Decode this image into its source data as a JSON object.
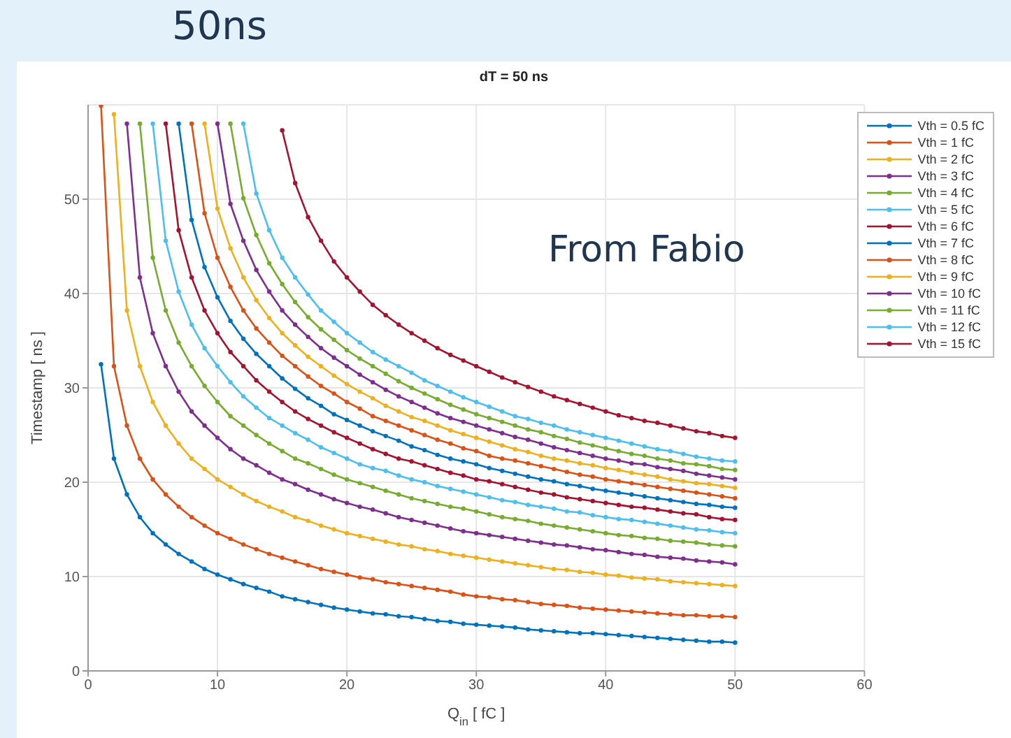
{
  "chart_data": {
    "type": "line",
    "title": "50ns",
    "subtitle": "dT = 50 ns",
    "xlabel": "Q$_{in}$ [ fC ]",
    "ylabel": "Timestamp [ ns ]",
    "annotations": [
      "From Fabio"
    ],
    "xlim": [
      0,
      60
    ],
    "xticks": [
      0,
      10,
      20,
      30,
      40,
      50,
      60
    ],
    "ylim": [
      0,
      60
    ],
    "yticks": [
      0,
      10,
      20,
      30,
      40,
      50
    ],
    "grid": true,
    "legend": "top right",
    "marker": "circle",
    "line_style": "solid",
    "series": [
      {
        "name": "Vth = 0.5 fC",
        "color": "#0072bd",
        "x": [
          1,
          2,
          3,
          4,
          5,
          6,
          7,
          8,
          9,
          10,
          11,
          12,
          13,
          14,
          15,
          16,
          17,
          18,
          19,
          20,
          21,
          22,
          23,
          24,
          25,
          26,
          27,
          28,
          29,
          30,
          31,
          32,
          33,
          34,
          35,
          36,
          37,
          38,
          39,
          40,
          41,
          42,
          43,
          44,
          45,
          46,
          47,
          48,
          49,
          50
        ],
        "values": [
          32.5,
          22.5,
          18.7,
          16.3,
          14.6,
          13.4,
          12.4,
          11.6,
          10.8,
          10.2,
          9.7,
          9.2,
          8.8,
          8.4,
          7.9,
          7.6,
          7.3,
          7.0,
          6.7,
          6.5,
          6.3,
          6.1,
          6.0,
          5.8,
          5.7,
          5.5,
          5.3,
          5.2,
          5.0,
          4.9,
          4.8,
          4.7,
          4.6,
          4.4,
          4.3,
          4.2,
          4.1,
          4.0,
          4.0,
          3.9,
          3.8,
          3.7,
          3.6,
          3.5,
          3.4,
          3.3,
          3.2,
          3.1,
          3.1,
          3.0
        ]
      },
      {
        "name": "Vth = 1 fC",
        "color": "#d95319",
        "x": [
          1,
          2,
          3,
          4,
          5,
          6,
          7,
          8,
          9,
          10,
          11,
          12,
          13,
          14,
          15,
          16,
          17,
          18,
          19,
          20,
          21,
          22,
          23,
          24,
          25,
          26,
          27,
          28,
          29,
          30,
          31,
          32,
          33,
          34,
          35,
          36,
          37,
          38,
          39,
          40,
          41,
          42,
          43,
          44,
          45,
          46,
          47,
          48,
          49,
          50
        ],
        "values": [
          59.9,
          32.3,
          26.0,
          22.5,
          20.3,
          18.7,
          17.4,
          16.3,
          15.4,
          14.6,
          14.0,
          13.4,
          12.9,
          12.4,
          12.0,
          11.6,
          11.2,
          10.8,
          10.5,
          10.2,
          9.9,
          9.7,
          9.4,
          9.2,
          9.0,
          8.8,
          8.6,
          8.4,
          8.1,
          7.9,
          7.8,
          7.6,
          7.5,
          7.3,
          7.1,
          7.0,
          6.9,
          6.7,
          6.6,
          6.5,
          6.4,
          6.3,
          6.2,
          6.1,
          6.0,
          5.9,
          5.9,
          5.8,
          5.8,
          5.7
        ]
      },
      {
        "name": "Vth = 2 fC",
        "color": "#edb120",
        "x": [
          2,
          3,
          4,
          5,
          6,
          7,
          8,
          9,
          10,
          11,
          12,
          13,
          14,
          15,
          16,
          17,
          18,
          19,
          20,
          21,
          22,
          23,
          24,
          25,
          26,
          27,
          28,
          29,
          30,
          31,
          32,
          33,
          34,
          35,
          36,
          37,
          38,
          39,
          40,
          41,
          42,
          43,
          44,
          45,
          46,
          47,
          48,
          49,
          50
        ],
        "values": [
          59.0,
          38.2,
          32.3,
          28.5,
          26.0,
          24.1,
          22.5,
          21.4,
          20.3,
          19.5,
          18.7,
          18.0,
          17.4,
          16.9,
          16.3,
          15.9,
          15.4,
          15.0,
          14.6,
          14.3,
          14.0,
          13.7,
          13.4,
          13.2,
          12.9,
          12.7,
          12.4,
          12.2,
          12.0,
          11.8,
          11.6,
          11.4,
          11.2,
          11.0,
          10.8,
          10.7,
          10.5,
          10.4,
          10.2,
          10.1,
          9.9,
          9.8,
          9.7,
          9.5,
          9.4,
          9.3,
          9.2,
          9.1,
          9.0
        ]
      },
      {
        "name": "Vth = 3 fC",
        "color": "#7e2f8e",
        "x": [
          3,
          4,
          5,
          6,
          7,
          8,
          9,
          10,
          11,
          12,
          13,
          14,
          15,
          16,
          17,
          18,
          19,
          20,
          21,
          22,
          23,
          24,
          25,
          26,
          27,
          28,
          29,
          30,
          31,
          32,
          33,
          34,
          35,
          36,
          37,
          38,
          39,
          40,
          41,
          42,
          43,
          44,
          45,
          46,
          47,
          48,
          49,
          50
        ],
        "values": [
          58.0,
          41.7,
          35.8,
          32.3,
          29.6,
          27.5,
          26.0,
          24.7,
          23.5,
          22.5,
          21.8,
          21.0,
          20.3,
          19.8,
          19.2,
          18.7,
          18.2,
          17.8,
          17.4,
          17.1,
          16.7,
          16.3,
          16.0,
          15.7,
          15.4,
          15.1,
          14.8,
          14.6,
          14.4,
          14.2,
          14.0,
          13.8,
          13.6,
          13.4,
          13.3,
          13.1,
          12.9,
          12.8,
          12.6,
          12.4,
          12.3,
          12.1,
          12.0,
          11.9,
          11.7,
          11.6,
          11.5,
          11.3
        ]
      },
      {
        "name": "Vth = 4 fC",
        "color": "#77ac30",
        "x": [
          4,
          5,
          6,
          7,
          8,
          9,
          10,
          11,
          12,
          13,
          14,
          15,
          16,
          17,
          18,
          19,
          20,
          21,
          22,
          23,
          24,
          25,
          26,
          27,
          28,
          29,
          30,
          31,
          32,
          33,
          34,
          35,
          36,
          37,
          38,
          39,
          40,
          41,
          42,
          43,
          44,
          45,
          46,
          47,
          48,
          49,
          50
        ],
        "values": [
          58.0,
          43.8,
          38.2,
          34.8,
          32.3,
          30.2,
          28.5,
          27.0,
          26.0,
          25.0,
          24.1,
          23.3,
          22.5,
          22.0,
          21.4,
          20.8,
          20.3,
          19.9,
          19.5,
          19.1,
          18.7,
          18.3,
          18.0,
          17.7,
          17.4,
          17.2,
          16.9,
          16.6,
          16.3,
          16.1,
          15.9,
          15.6,
          15.4,
          15.2,
          15.0,
          14.8,
          14.6,
          14.4,
          14.3,
          14.1,
          14.0,
          13.8,
          13.7,
          13.6,
          13.4,
          13.3,
          13.2
        ]
      },
      {
        "name": "Vth = 5 fC",
        "color": "#4dbeee",
        "x": [
          5,
          6,
          7,
          8,
          9,
          10,
          11,
          12,
          13,
          14,
          15,
          16,
          17,
          18,
          19,
          20,
          21,
          22,
          23,
          24,
          25,
          26,
          27,
          28,
          29,
          30,
          31,
          32,
          33,
          34,
          35,
          36,
          37,
          38,
          39,
          40,
          41,
          42,
          43,
          44,
          45,
          46,
          47,
          48,
          49,
          50
        ],
        "values": [
          58.0,
          45.6,
          40.2,
          36.7,
          34.2,
          32.3,
          30.6,
          29.1,
          27.9,
          26.8,
          26.0,
          25.2,
          24.5,
          23.7,
          23.1,
          22.5,
          21.9,
          21.5,
          21.2,
          20.7,
          20.3,
          20.0,
          19.6,
          19.3,
          19.0,
          18.7,
          18.4,
          18.1,
          17.9,
          17.6,
          17.4,
          17.2,
          16.9,
          16.8,
          16.5,
          16.3,
          16.1,
          16.0,
          15.8,
          15.6,
          15.4,
          15.2,
          15.0,
          14.9,
          14.7,
          14.6
        ]
      },
      {
        "name": "Vth = 6 fC",
        "color": "#a2142f",
        "x": [
          6,
          7,
          8,
          9,
          10,
          11,
          12,
          13,
          14,
          15,
          16,
          17,
          18,
          19,
          20,
          21,
          22,
          23,
          24,
          25,
          26,
          27,
          28,
          29,
          30,
          31,
          32,
          33,
          34,
          35,
          36,
          37,
          38,
          39,
          40,
          41,
          42,
          43,
          44,
          45,
          46,
          47,
          48,
          49,
          50
        ],
        "values": [
          58.0,
          46.7,
          41.7,
          38.2,
          35.8,
          33.8,
          32.3,
          30.8,
          29.6,
          28.5,
          27.5,
          26.7,
          26.0,
          25.3,
          24.7,
          24.1,
          23.5,
          23.0,
          22.5,
          22.2,
          21.8,
          21.4,
          21.0,
          20.7,
          20.3,
          20.1,
          19.8,
          19.5,
          19.2,
          18.9,
          18.7,
          18.4,
          18.2,
          18.0,
          17.8,
          17.6,
          17.4,
          17.3,
          17.1,
          16.9,
          16.7,
          16.6,
          16.3,
          16.1,
          16.0
        ]
      },
      {
        "name": "Vth = 7 fC",
        "color": "#0072bd",
        "x": [
          7,
          8,
          9,
          10,
          11,
          12,
          13,
          14,
          15,
          16,
          17,
          18,
          19,
          20,
          21,
          22,
          23,
          24,
          25,
          26,
          27,
          28,
          29,
          30,
          31,
          32,
          33,
          34,
          35,
          36,
          37,
          38,
          39,
          40,
          41,
          42,
          43,
          44,
          45,
          46,
          47,
          48,
          49,
          50
        ],
        "values": [
          58.0,
          47.8,
          42.8,
          39.6,
          37.1,
          35.2,
          33.6,
          32.3,
          31.0,
          29.9,
          28.9,
          28.1,
          27.2,
          26.6,
          26.0,
          25.4,
          24.9,
          24.4,
          23.8,
          23.4,
          22.9,
          22.5,
          22.2,
          21.9,
          21.5,
          21.2,
          20.9,
          20.6,
          20.3,
          20.1,
          19.8,
          19.6,
          19.3,
          19.1,
          18.9,
          18.7,
          18.5,
          18.3,
          18.1,
          17.9,
          17.7,
          17.6,
          17.4,
          17.3
        ]
      },
      {
        "name": "Vth = 8 fC",
        "color": "#d95319",
        "x": [
          8,
          9,
          10,
          11,
          12,
          13,
          14,
          15,
          16,
          17,
          18,
          19,
          20,
          21,
          22,
          23,
          24,
          25,
          26,
          27,
          28,
          29,
          30,
          31,
          32,
          33,
          34,
          35,
          36,
          37,
          38,
          39,
          40,
          41,
          42,
          43,
          44,
          45,
          46,
          47,
          48,
          49,
          50
        ],
        "values": [
          58.0,
          48.5,
          43.8,
          40.7,
          38.2,
          36.3,
          34.8,
          33.4,
          32.3,
          31.2,
          30.2,
          29.4,
          28.5,
          27.8,
          27.0,
          26.5,
          26.0,
          25.5,
          25.0,
          24.5,
          24.1,
          23.6,
          23.3,
          22.8,
          22.5,
          22.3,
          22.0,
          21.7,
          21.4,
          21.1,
          20.8,
          20.6,
          20.3,
          20.1,
          19.9,
          19.7,
          19.5,
          19.3,
          19.1,
          18.9,
          18.7,
          18.5,
          18.3
        ]
      },
      {
        "name": "Vth = 9 fC",
        "color": "#edb120",
        "x": [
          9,
          10,
          11,
          12,
          13,
          14,
          15,
          16,
          17,
          18,
          19,
          20,
          21,
          22,
          23,
          24,
          25,
          26,
          27,
          28,
          29,
          30,
          31,
          32,
          33,
          34,
          35,
          36,
          37,
          38,
          39,
          40,
          41,
          42,
          43,
          44,
          45,
          46,
          47,
          48,
          49,
          50
        ],
        "values": [
          58.0,
          49.0,
          44.8,
          41.7,
          39.3,
          37.4,
          35.8,
          34.5,
          33.3,
          32.3,
          31.3,
          30.4,
          29.6,
          28.9,
          28.1,
          27.5,
          26.9,
          26.5,
          26.0,
          25.5,
          25.1,
          24.7,
          24.3,
          23.9,
          23.5,
          23.2,
          22.8,
          22.5,
          22.3,
          22.0,
          21.8,
          21.5,
          21.3,
          21.0,
          20.8,
          20.6,
          20.3,
          20.1,
          19.9,
          19.8,
          19.6,
          19.4
        ]
      },
      {
        "name": "Vth = 10 fC",
        "color": "#7e2f8e",
        "x": [
          10,
          11,
          12,
          13,
          14,
          15,
          16,
          17,
          18,
          19,
          20,
          21,
          22,
          23,
          24,
          25,
          26,
          27,
          28,
          29,
          30,
          31,
          32,
          33,
          34,
          35,
          36,
          37,
          38,
          39,
          40,
          41,
          42,
          43,
          44,
          45,
          46,
          47,
          48,
          49,
          50
        ],
        "values": [
          58.0,
          49.5,
          45.6,
          42.5,
          40.2,
          38.2,
          36.7,
          35.4,
          34.2,
          33.2,
          32.3,
          31.4,
          30.6,
          29.8,
          29.1,
          28.5,
          27.9,
          27.3,
          26.8,
          26.4,
          26.0,
          25.6,
          25.2,
          24.8,
          24.5,
          24.1,
          23.7,
          23.4,
          23.1,
          22.8,
          22.5,
          22.3,
          22.0,
          21.9,
          21.6,
          21.4,
          21.2,
          20.9,
          20.7,
          20.5,
          20.3
        ]
      },
      {
        "name": "Vth = 11 fC",
        "color": "#77ac30",
        "x": [
          11,
          12,
          13,
          14,
          15,
          16,
          17,
          18,
          19,
          20,
          21,
          22,
          23,
          24,
          25,
          26,
          27,
          28,
          29,
          30,
          31,
          32,
          33,
          34,
          35,
          36,
          37,
          38,
          39,
          40,
          41,
          42,
          43,
          44,
          45,
          46,
          47,
          48,
          49,
          50
        ],
        "values": [
          58.0,
          50.1,
          46.2,
          43.2,
          41.0,
          39.1,
          37.5,
          36.2,
          35.1,
          34.0,
          33.1,
          32.3,
          31.5,
          30.7,
          30.0,
          29.4,
          28.8,
          28.2,
          27.7,
          27.2,
          26.8,
          26.4,
          26.0,
          25.6,
          25.3,
          24.9,
          24.6,
          24.2,
          23.9,
          23.6,
          23.3,
          23.0,
          22.8,
          22.5,
          22.3,
          22.0,
          21.9,
          21.7,
          21.4,
          21.3
        ]
      },
      {
        "name": "Vth = 12 fC",
        "color": "#4dbeee",
        "x": [
          12,
          13,
          14,
          15,
          16,
          17,
          18,
          19,
          20,
          21,
          22,
          23,
          24,
          25,
          26,
          27,
          28,
          29,
          30,
          31,
          32,
          33,
          34,
          35,
          36,
          37,
          38,
          39,
          40,
          41,
          42,
          43,
          44,
          45,
          46,
          47,
          48,
          49,
          50
        ],
        "values": [
          58.0,
          50.6,
          46.7,
          43.8,
          41.7,
          39.9,
          38.2,
          37.0,
          35.8,
          34.8,
          33.8,
          33.0,
          32.3,
          31.6,
          30.8,
          30.2,
          29.6,
          29.0,
          28.5,
          28.0,
          27.5,
          27.0,
          26.7,
          26.3,
          26.0,
          25.6,
          25.3,
          25.0,
          24.7,
          24.4,
          24.1,
          23.8,
          23.5,
          23.3,
          23.0,
          22.7,
          22.5,
          22.3,
          22.2
        ]
      },
      {
        "name": "Vth = 15 fC",
        "color": "#a2142f",
        "x": [
          15,
          16,
          17,
          18,
          19,
          20,
          21,
          22,
          23,
          24,
          25,
          26,
          27,
          28,
          29,
          30,
          31,
          32,
          33,
          34,
          35,
          36,
          37,
          38,
          39,
          40,
          41,
          42,
          43,
          44,
          45,
          46,
          47,
          48,
          49,
          50
        ],
        "values": [
          57.3,
          51.7,
          48.1,
          45.6,
          43.4,
          41.7,
          40.2,
          38.8,
          37.7,
          36.7,
          35.8,
          35.0,
          34.2,
          33.5,
          32.9,
          32.3,
          31.7,
          31.1,
          30.6,
          30.1,
          29.6,
          29.1,
          28.7,
          28.3,
          27.9,
          27.5,
          27.1,
          26.8,
          26.5,
          26.3,
          26.0,
          25.7,
          25.4,
          25.2,
          24.9,
          24.7
        ]
      }
    ]
  }
}
